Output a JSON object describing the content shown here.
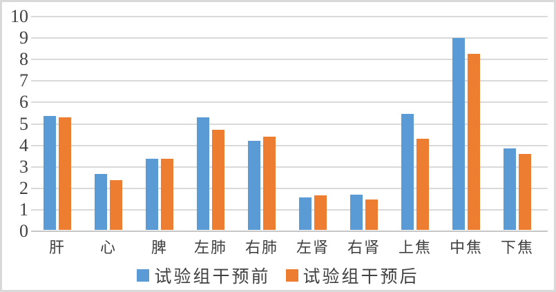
{
  "chart_data": {
    "type": "bar",
    "title": "",
    "xlabel": "",
    "ylabel": "",
    "categories": [
      "肝",
      "心",
      "脾",
      "左肺",
      "右肺",
      "左肾",
      "右肾",
      "上焦",
      "中焦",
      "下焦"
    ],
    "series": [
      {
        "name": "试验组干预前",
        "color": "#5B9BD5",
        "values": [
          5.3,
          2.6,
          3.3,
          5.25,
          4.15,
          1.5,
          1.65,
          5.4,
          8.95,
          3.8
        ]
      },
      {
        "name": "试验组干预后",
        "color": "#ED7D31",
        "values": [
          5.25,
          2.3,
          3.3,
          4.65,
          4.35,
          1.6,
          1.4,
          4.25,
          8.2,
          3.55
        ]
      }
    ],
    "ylim": [
      0,
      10
    ],
    "ytick_step": 1,
    "ytick_labels": [
      "0",
      "1",
      "2",
      "3",
      "4",
      "5",
      "6",
      "7",
      "8",
      "9",
      "10"
    ],
    "grid": true,
    "gridline_color": "#D9D9D9",
    "axis_line_color": "#C6C6C6",
    "text_color": "#404040",
    "legend_position": "bottom"
  }
}
